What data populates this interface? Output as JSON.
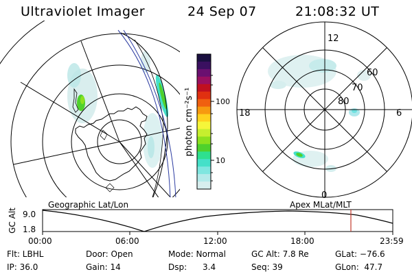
{
  "header": {
    "title": "Ultraviolet Imager",
    "date": "24 Sep 07",
    "time": "21:08:32 UT"
  },
  "left_map": {
    "caption": "Geographic Lat/Lon"
  },
  "right_map": {
    "caption": "Apex MLat/MLT",
    "mlt_labels": {
      "top": "12",
      "bottom": "0",
      "left": "18",
      "right": "6"
    },
    "lat_labels": [
      "60",
      "70",
      "80"
    ]
  },
  "colorbar": {
    "unit_label": "photon cm⁻²s⁻¹",
    "ticks": [
      "100",
      "10"
    ],
    "colors": [
      "#1a1040",
      "#3a1060",
      "#6a1070",
      "#9a1060",
      "#c01020",
      "#e03010",
      "#f06010",
      "#f79a10",
      "#ffd21e",
      "#f6f63a",
      "#c7ef2e",
      "#8de11e",
      "#4fd12c",
      "#2ee08f",
      "#45e0c9",
      "#7fe6e0",
      "#b4eaea",
      "#d7eeee"
    ]
  },
  "timeline": {
    "ylabel": "GC Alt",
    "ymax_label": "9.0",
    "ymin_label": "1.8",
    "xticks": [
      "00:00",
      "06:00",
      "12:00",
      "18:00",
      "23:59"
    ],
    "marker_color": "#c0392b"
  },
  "info": {
    "flt": "Flt: LBHL",
    "ip": "IP: 36.0",
    "door": "Door: Open",
    "gain": "Gain: 14",
    "mode": "Mode: Normal",
    "dsp": "Dsp:      3.4",
    "gcalt": "GC Alt: 7.8 Re",
    "seq": "Seq: 39",
    "glat": "GLat: −76.6",
    "glon": "GLon:  47.7"
  }
}
